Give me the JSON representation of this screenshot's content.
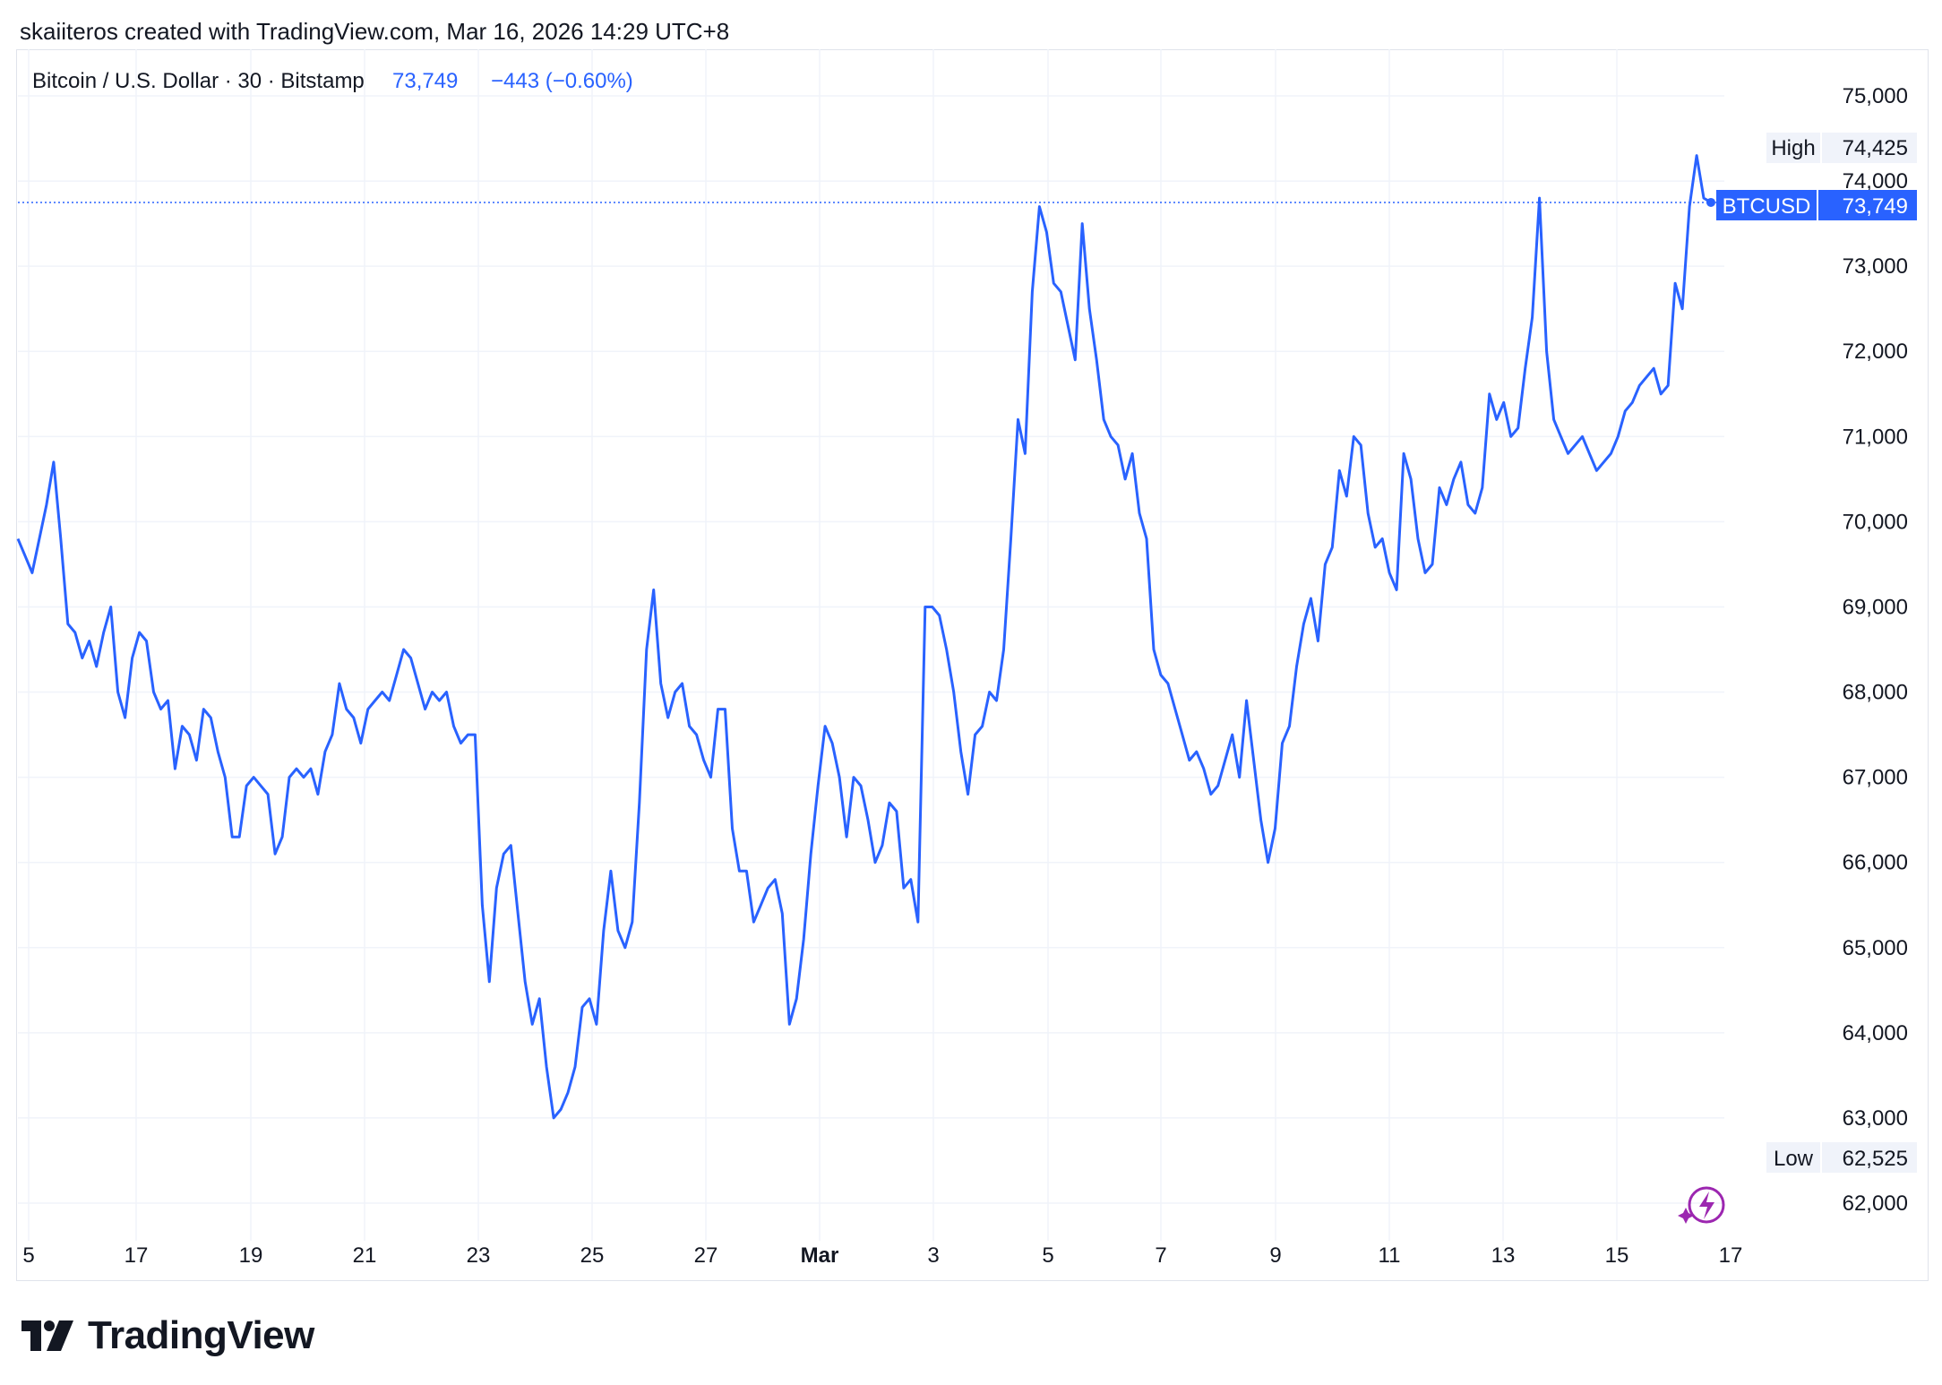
{
  "header": {
    "created_line": "skaiiteros created with TradingView.com, Mar 16, 2026 14:29 UTC+8"
  },
  "legend": {
    "symbol_label": "Bitcoin / U.S. Dollar · 30 · Bitstamp",
    "last_price": "73,749",
    "change": "−443 (−0.60%)"
  },
  "price_axis": {
    "labels": [
      "75,000",
      "74,000",
      "73,000",
      "72,000",
      "71,000",
      "70,000",
      "69,000",
      "68,000",
      "67,000",
      "66,000",
      "65,000",
      "64,000",
      "63,000",
      "62,000"
    ],
    "high_label": "High",
    "high_value": "74,425",
    "low_label": "Low",
    "low_value": "62,525",
    "symbol_tag": "BTCUSD",
    "symbol_value": "73,749"
  },
  "time_axis": {
    "labels": [
      "5",
      "17",
      "19",
      "21",
      "23",
      "25",
      "27",
      "Mar",
      "3",
      "5",
      "7",
      "9",
      "11",
      "13",
      "15",
      "17"
    ]
  },
  "footer": {
    "brand": "TradingView"
  },
  "colors": {
    "line": "#2962ff",
    "grid": "#f0f3fa",
    "text": "#131722",
    "accent": "#2962ff",
    "bolt": "#9c27b0"
  },
  "icons": {
    "logo": "tradingview-logo-icon",
    "bolt": "lightning-icon"
  },
  "chart_data": {
    "type": "line",
    "series": [
      {
        "name": "BTCUSD",
        "x_start": "Feb 15",
        "x_step_hours": 12,
        "values": [
          69800,
          69600,
          69400,
          69800,
          70200,
          70700,
          69800,
          68800,
          68700,
          68400,
          68600,
          68300,
          68700,
          69000,
          68000,
          67700,
          68400,
          68700,
          68600,
          68000,
          67800,
          67900,
          67100,
          67600,
          67500,
          67200,
          67800,
          67700,
          67300,
          67000,
          66300,
          66300,
          66900,
          67000,
          66900,
          66800,
          66100,
          66300,
          67000,
          67100,
          67000,
          67100,
          66800,
          67300,
          67500,
          68100,
          67800,
          67700,
          67400,
          67800,
          67900,
          68000,
          67900,
          68200,
          68500,
          68400,
          68100,
          67800,
          68000,
          67900,
          68000,
          67600,
          67400,
          67500,
          67500,
          65500,
          64600,
          65700,
          66100,
          66200,
          65400,
          64600,
          64100,
          64400,
          63600,
          63000,
          63100,
          63300,
          63600,
          64300,
          64400,
          64100,
          65200,
          65900,
          65200,
          65000,
          65300,
          66700,
          68500,
          69200,
          68100,
          67700,
          68000,
          68100,
          67600,
          67500,
          67200,
          67000,
          67800,
          67800,
          66400,
          65900,
          65900,
          65300,
          65500,
          65700,
          65800,
          65400,
          64100,
          64400,
          65100,
          66100,
          66900,
          67600,
          67400,
          67000,
          66300,
          67000,
          66900,
          66500,
          66000,
          66200,
          66700,
          66600,
          65700,
          65800,
          65300,
          69000,
          69000,
          68900,
          68500,
          68000,
          67300,
          66800,
          67500,
          67600,
          68000,
          67900,
          68500,
          69800,
          71200,
          70800,
          72700,
          73700,
          73400,
          72800,
          72700,
          72300,
          71900,
          73500,
          72500,
          71900,
          71200,
          71000,
          70900,
          70500,
          70800,
          70100,
          69800,
          68500,
          68200,
          68100,
          67800,
          67500,
          67200,
          67300,
          67100,
          66800,
          66900,
          67200,
          67500,
          67000,
          67900,
          67200,
          66500,
          66000,
          66400,
          67400,
          67600,
          68300,
          68800,
          69100,
          68600,
          69500,
          69700,
          70600,
          70300,
          71000,
          70900,
          70100,
          69700,
          69800,
          69400,
          69200,
          70800,
          70500,
          69800,
          69400,
          69500,
          70400,
          70200,
          70500,
          70700,
          70200,
          70100,
          70400,
          71500,
          71200,
          71400,
          71000,
          71100,
          71800,
          72400,
          73800,
          72000,
          71200,
          71000,
          70800,
          70900,
          71000,
          70800,
          70600,
          70700,
          70800,
          71000,
          71300,
          71400,
          71600,
          71700,
          71800,
          71500,
          71600,
          72800,
          72500,
          73700,
          74300,
          73800,
          73749
        ]
      }
    ],
    "xlim": [
      "Feb 15",
      "Mar 17"
    ],
    "ylim": [
      61800,
      75300
    ],
    "ylabel": "",
    "grid": true,
    "log_scale": false
  }
}
